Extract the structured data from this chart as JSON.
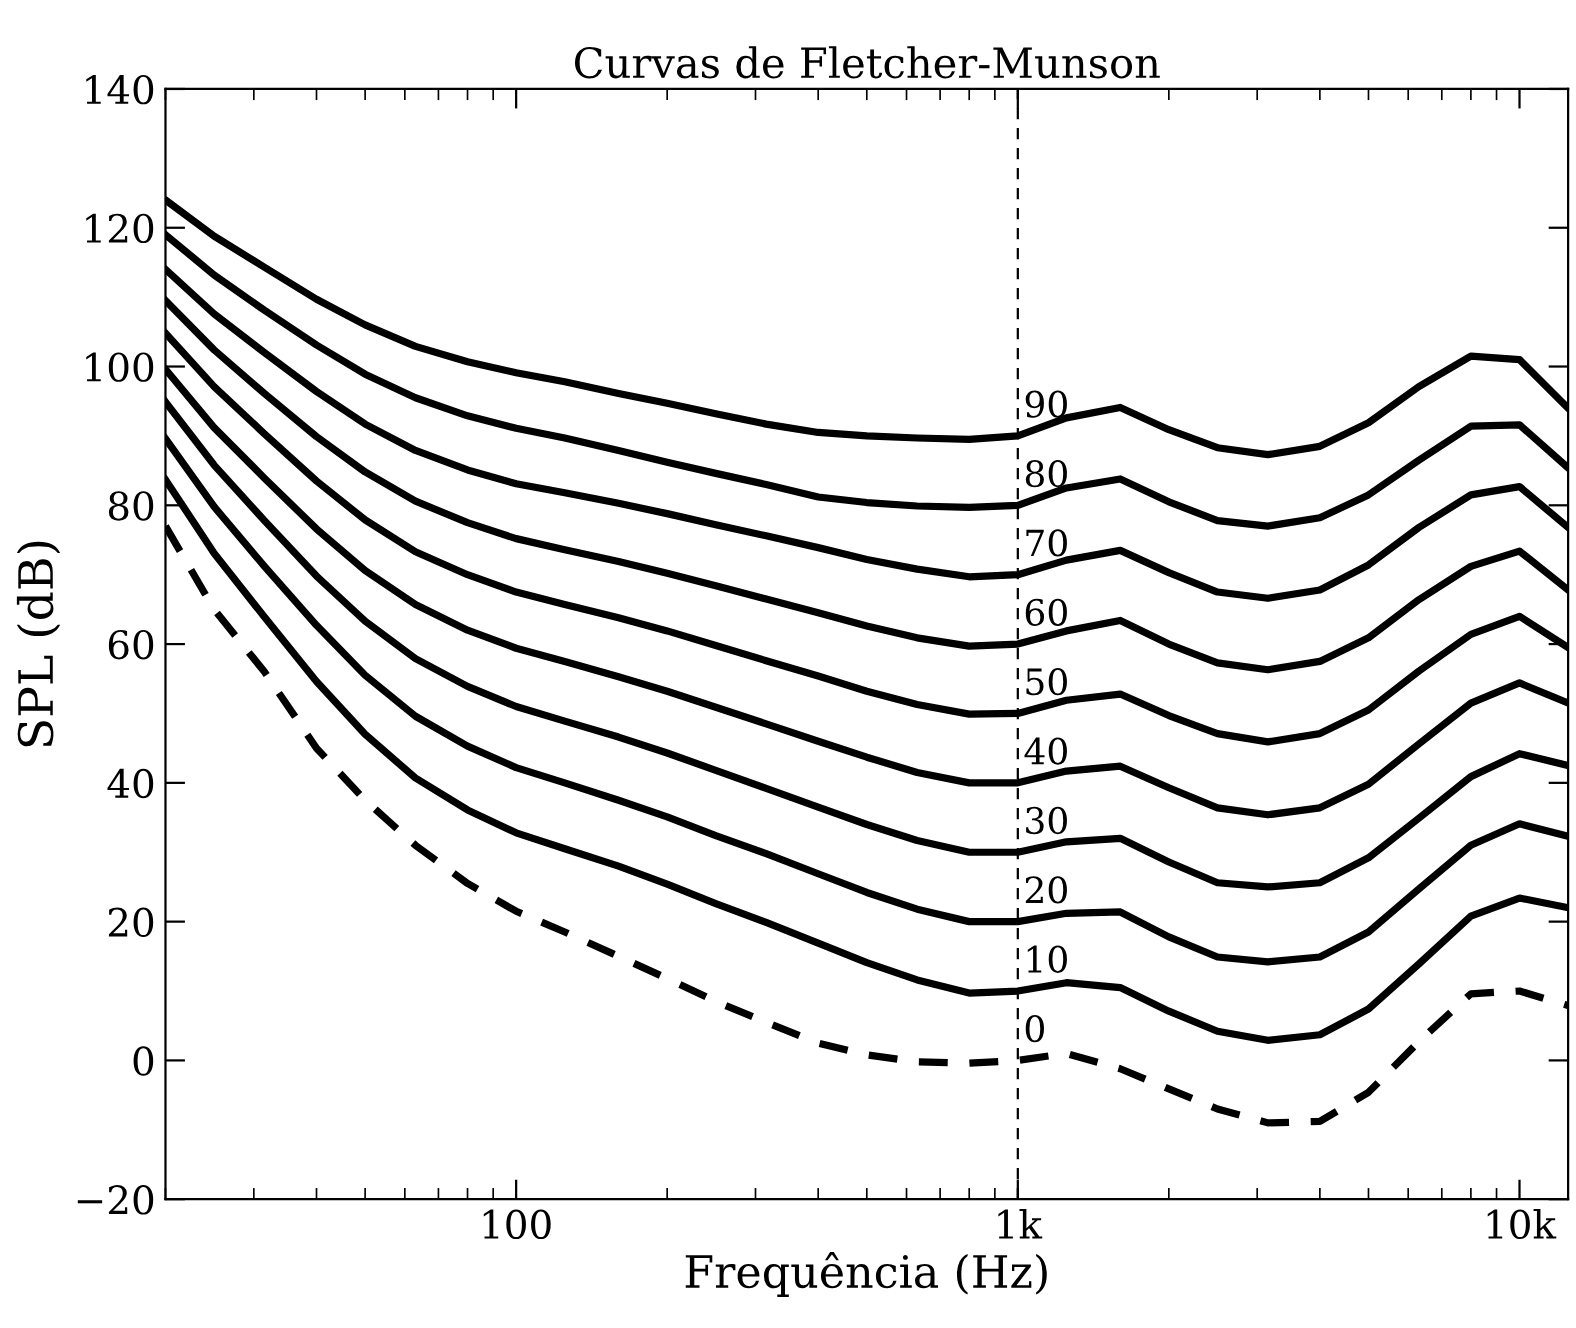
{
  "chart_data": {
    "type": "line",
    "title": "Curvas de Fletcher-Munson",
    "xlabel": "Frequência (Hz)",
    "ylabel": "SPL (dB)",
    "log": "x",
    "grid": false,
    "legend": false,
    "marker": "none",
    "x": [
      20,
      25,
      31.5,
      40,
      50,
      63,
      80,
      100,
      125,
      160,
      200,
      250,
      315,
      400,
      500,
      630,
      800,
      1000,
      1250,
      1600,
      2000,
      2500,
      3150,
      4000,
      5000,
      6300,
      8000,
      10000,
      12500
    ],
    "xlim": [
      20,
      12500
    ],
    "xticks": [
      {
        "value": 100,
        "label": "100"
      },
      {
        "value": 1000,
        "label": "1k"
      },
      {
        "value": 10000,
        "label": "10k"
      }
    ],
    "ylim": [
      -20,
      140
    ],
    "yticks": [
      {
        "value": -20,
        "label": "−20"
      },
      0,
      20,
      40,
      60,
      80,
      100,
      120,
      140
    ],
    "ref_lines": [
      {
        "axis": "x",
        "value": 1000,
        "color": "#000000",
        "line_style": "dashed"
      }
    ],
    "series": [
      {
        "name": "90",
        "color": "#000000",
        "line_style": "solid",
        "values": [
          124,
          118.8,
          114.3,
          109.7,
          106.0,
          102.9,
          100.7,
          99.1,
          97.8,
          96.1,
          94.7,
          93.2,
          91.7,
          90.5,
          90.0,
          89.7,
          89.5,
          90,
          92.6,
          94.1,
          90.9,
          88.3,
          87.3,
          88.5,
          91.9,
          97.1,
          101.5,
          101.0,
          94
        ]
      },
      {
        "name": "80",
        "color": "#000000",
        "line_style": "solid",
        "values": [
          119,
          113.2,
          108.1,
          103.1,
          98.9,
          95.5,
          92.9,
          91.1,
          89.7,
          87.9,
          86.2,
          84.6,
          83.0,
          81.2,
          80.4,
          79.9,
          79.7,
          80,
          82.5,
          83.8,
          80.5,
          77.8,
          77.0,
          78.2,
          81.5,
          86.5,
          91.4,
          91.6,
          85.4
        ]
      },
      {
        "name": "70",
        "color": "#000000",
        "line_style": "solid",
        "values": [
          114,
          107.6,
          102.0,
          96.4,
          91.7,
          87.9,
          85.1,
          83.1,
          81.8,
          80.3,
          78.8,
          77.2,
          75.6,
          73.9,
          72.2,
          70.8,
          69.7,
          70,
          72.1,
          73.5,
          70.3,
          67.5,
          66.6,
          67.8,
          71.4,
          76.8,
          81.5,
          82.7,
          76.8
        ]
      },
      {
        "name": "60",
        "color": "#000000",
        "line_style": "solid",
        "values": [
          109.5,
          102.4,
          96.1,
          89.9,
          84.8,
          80.6,
          77.5,
          75.2,
          73.6,
          71.9,
          70.2,
          68.4,
          66.5,
          64.5,
          62.6,
          60.9,
          59.7,
          60,
          61.9,
          63.4,
          60,
          57.3,
          56.3,
          57.5,
          60.9,
          66.4,
          71.2,
          73.4,
          67.8
        ]
      },
      {
        "name": "50",
        "color": "#000000",
        "line_style": "solid",
        "values": [
          104.8,
          97.1,
          90.3,
          83.5,
          77.9,
          73.3,
          70.0,
          67.5,
          65.7,
          63.8,
          61.9,
          59.8,
          57.6,
          55.4,
          53.2,
          51.3,
          49.9,
          50,
          51.9,
          52.8,
          49.7,
          47.1,
          45.9,
          47.1,
          50.5,
          56.1,
          61.4,
          64,
          59.5
        ]
      },
      {
        "name": "40",
        "color": "#000000",
        "line_style": "solid",
        "values": [
          99.6,
          91.2,
          83.9,
          76.6,
          70.6,
          65.7,
          62.0,
          59.4,
          57.5,
          55.3,
          53.2,
          50.9,
          48.5,
          46.0,
          43.7,
          41.5,
          40,
          40,
          41.7,
          42.4,
          39.3,
          36.4,
          35.4,
          36.4,
          39.8,
          45.6,
          51.5,
          54.4,
          51.5
        ]
      },
      {
        "name": "30",
        "color": "#000000",
        "line_style": "solid",
        "values": [
          94.9,
          85.8,
          77.8,
          69.8,
          63.3,
          57.9,
          53.9,
          51.0,
          48.9,
          46.6,
          44.3,
          41.8,
          39.2,
          36.5,
          34.0,
          31.7,
          30,
          30,
          31.5,
          32.0,
          28.6,
          25.6,
          25.0,
          25.6,
          29.2,
          34.9,
          40.9,
          44.2,
          42.5
        ]
      },
      {
        "name": "20",
        "color": "#000000",
        "line_style": "solid",
        "values": [
          89.6,
          79.8,
          71.2,
          62.7,
          55.5,
          49.6,
          45.3,
          42.2,
          40.0,
          37.5,
          35.1,
          32.4,
          29.8,
          26.9,
          24.2,
          21.8,
          20,
          20,
          21.2,
          21.4,
          17.8,
          14.9,
          14.2,
          14.9,
          18.5,
          24.7,
          31,
          34.1,
          32.3
        ]
      },
      {
        "name": "10",
        "color": "#000000",
        "line_style": "solid",
        "values": [
          83.7,
          73.1,
          63.9,
          54.6,
          47.0,
          40.7,
          36.1,
          32.8,
          30.5,
          28.0,
          25.4,
          22.6,
          19.9,
          16.9,
          14.1,
          11.6,
          9.7,
          10,
          11.2,
          10.5,
          7.1,
          4.2,
          2.9,
          3.7,
          7.4,
          13.9,
          20.8,
          23.4,
          22
        ]
      },
      {
        "name": "0",
        "color": "#000000",
        "line_style": "dashed",
        "values": [
          77,
          65,
          56,
          45,
          37.5,
          31,
          25.5,
          21.5,
          18.5,
          15,
          11.8,
          8.5,
          5.5,
          2.5,
          0.8,
          -0.2,
          -0.4,
          0,
          1.0,
          -1.2,
          -4.1,
          -7.0,
          -9.0,
          -8.8,
          -4.6,
          2.7,
          9.6,
          10.0,
          7.9
        ]
      }
    ]
  }
}
